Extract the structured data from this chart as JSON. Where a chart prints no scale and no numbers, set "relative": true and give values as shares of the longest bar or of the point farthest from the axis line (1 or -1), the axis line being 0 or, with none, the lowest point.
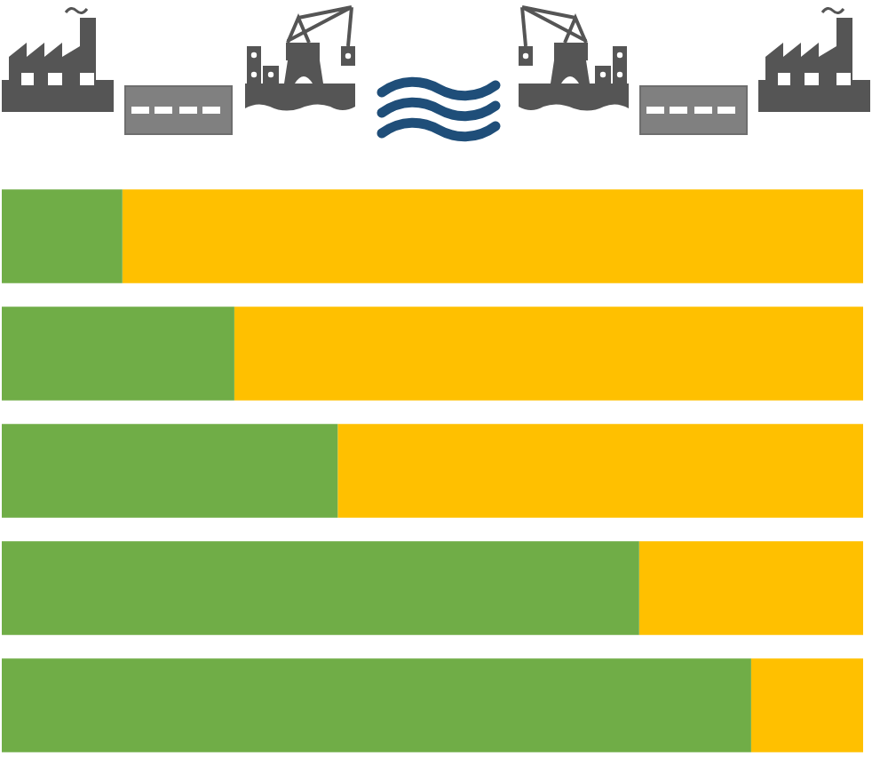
{
  "chart_data": {
    "type": "bar",
    "orientation": "horizontal",
    "stacked": true,
    "relative": true,
    "tick_labels": false,
    "categories": [
      null,
      null,
      null,
      null,
      null
    ],
    "series": [
      {
        "color": "#70ad47",
        "values": [
          0.14,
          0.27,
          0.39,
          0.74,
          0.87
        ]
      },
      {
        "color": "#ffc000",
        "values": [
          0.86,
          0.73,
          0.61,
          0.26,
          0.13
        ]
      }
    ]
  }
}
